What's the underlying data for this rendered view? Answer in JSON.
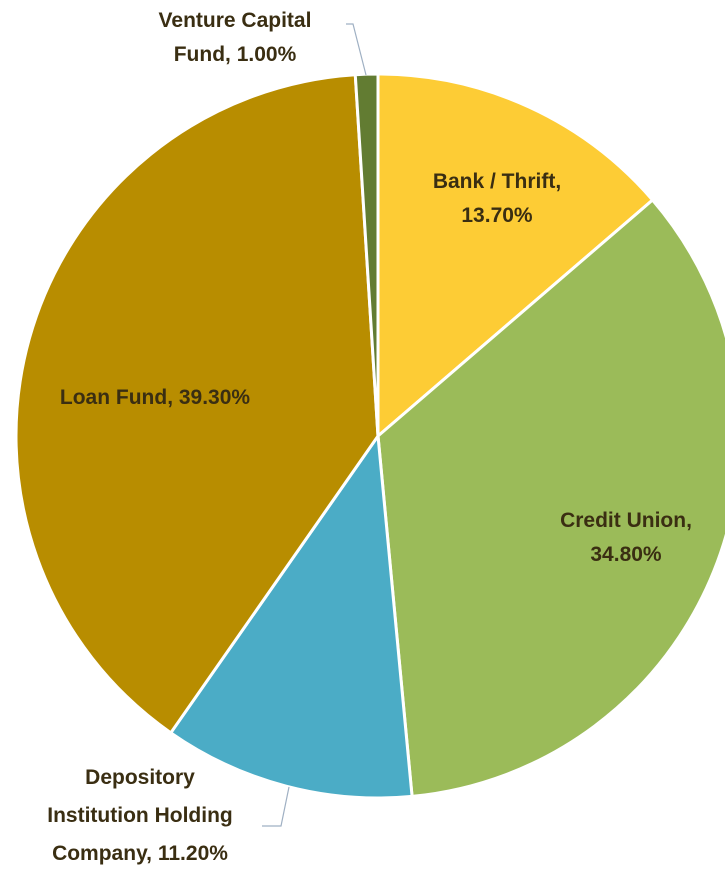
{
  "chart_data": {
    "type": "pie",
    "title": "",
    "slices": [
      {
        "label_lines": [
          "Bank / Thrift,",
          "13.70%"
        ],
        "category": "Bank / Thrift",
        "value": 13.7,
        "color": "#fdcc35"
      },
      {
        "label_lines": [
          "Credit Union,",
          "34.80%"
        ],
        "category": "Credit Union",
        "value": 34.8,
        "color": "#9bbb59"
      },
      {
        "label_lines": [
          "Depository",
          "Institution Holding",
          "Company, 11.20%"
        ],
        "category": "Depository Institution Holding Company",
        "value": 11.2,
        "color": "#4bacc6"
      },
      {
        "label_lines": [
          "Loan Fund, 39.30%"
        ],
        "category": "Loan Fund",
        "value": 39.3,
        "color": "#b88d00"
      },
      {
        "label_lines": [
          "Venture Capital",
          "Fund, 1.00%"
        ],
        "category": "Venture Capital Fund",
        "value": 1.0,
        "color": "#627c32"
      }
    ],
    "start_angle": "12 o'clock, clockwise",
    "legend": "none"
  }
}
